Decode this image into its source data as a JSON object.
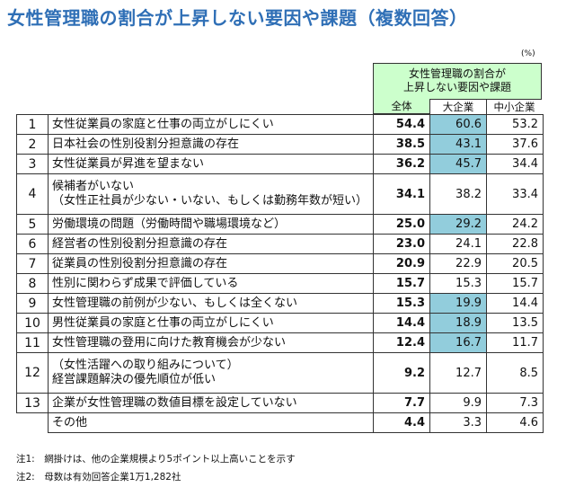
{
  "title": "女性管理職の割合が上昇しない要因や課題（複数回答）",
  "unit": "(%)",
  "header": {
    "group_line1": "女性管理職の割合が",
    "group_line2": "上昇しない要因や課題",
    "cols": [
      "全体",
      "大企業",
      "中小企業"
    ]
  },
  "highlight_color": "#92cddc",
  "rows": [
    {
      "no": "1",
      "label": "女性従業員の家庭と仕事の両立がしにくい",
      "all": "54.4",
      "large": "60.6",
      "sme": "53.2",
      "hl": true
    },
    {
      "no": "2",
      "label": "日本社会の性別役割分担意識の存在",
      "all": "38.5",
      "large": "43.1",
      "sme": "37.6",
      "hl": true
    },
    {
      "no": "3",
      "label": "女性従業員が昇進を望まない",
      "all": "36.2",
      "large": "45.7",
      "sme": "34.4",
      "hl": true
    },
    {
      "no": "4",
      "label": "候補者がいない",
      "label2": "（女性正社員が少ない・いない、もしくは勤務年数が短い）",
      "all": "34.1",
      "large": "38.2",
      "sme": "33.4",
      "hl": false
    },
    {
      "no": "5",
      "label": "労働環境の問題（労働時間や職場環境など）",
      "all": "25.0",
      "large": "29.2",
      "sme": "24.2",
      "hl": true
    },
    {
      "no": "6",
      "label": "経営者の性別役割分担意識の存在",
      "all": "23.0",
      "large": "24.1",
      "sme": "22.8",
      "hl": false
    },
    {
      "no": "7",
      "label": "従業員の性別役割分担意識の存在",
      "all": "20.9",
      "large": "22.9",
      "sme": "20.5",
      "hl": false
    },
    {
      "no": "8",
      "label": "性別に関わらず成果で評価している",
      "all": "15.7",
      "large": "15.3",
      "sme": "15.7",
      "hl": false
    },
    {
      "no": "9",
      "label": "女性管理職の前例が少ない、もしくは全くない",
      "all": "15.3",
      "large": "19.9",
      "sme": "14.4",
      "hl": true
    },
    {
      "no": "10",
      "label": "男性従業員の家庭と仕事の両立がしにくい",
      "all": "14.4",
      "large": "18.9",
      "sme": "13.5",
      "hl": true
    },
    {
      "no": "11",
      "label": "女性管理職の登用に向けた教育機会が少ない",
      "all": "12.4",
      "large": "16.7",
      "sme": "11.7",
      "hl": true
    },
    {
      "no": "12",
      "label": "（女性活躍への取り組みについて）",
      "label2": "経営課題解決の優先順位が低い",
      "all": "9.2",
      "large": "12.7",
      "sme": "8.5",
      "hl": false
    },
    {
      "no": "13",
      "label": "企業が女性管理職の数値目標を設定していない",
      "all": "7.7",
      "large": "9.9",
      "sme": "7.3",
      "hl": false
    },
    {
      "no": "",
      "label": "その他",
      "all": "4.4",
      "large": "3.3",
      "sme": "4.6",
      "hl": false
    }
  ],
  "notes": [
    "注1:　網掛けは、他の企業規模より5ポイント以上高いことを示す",
    "注2:　母数は有効回答企業1万1,282社"
  ]
}
